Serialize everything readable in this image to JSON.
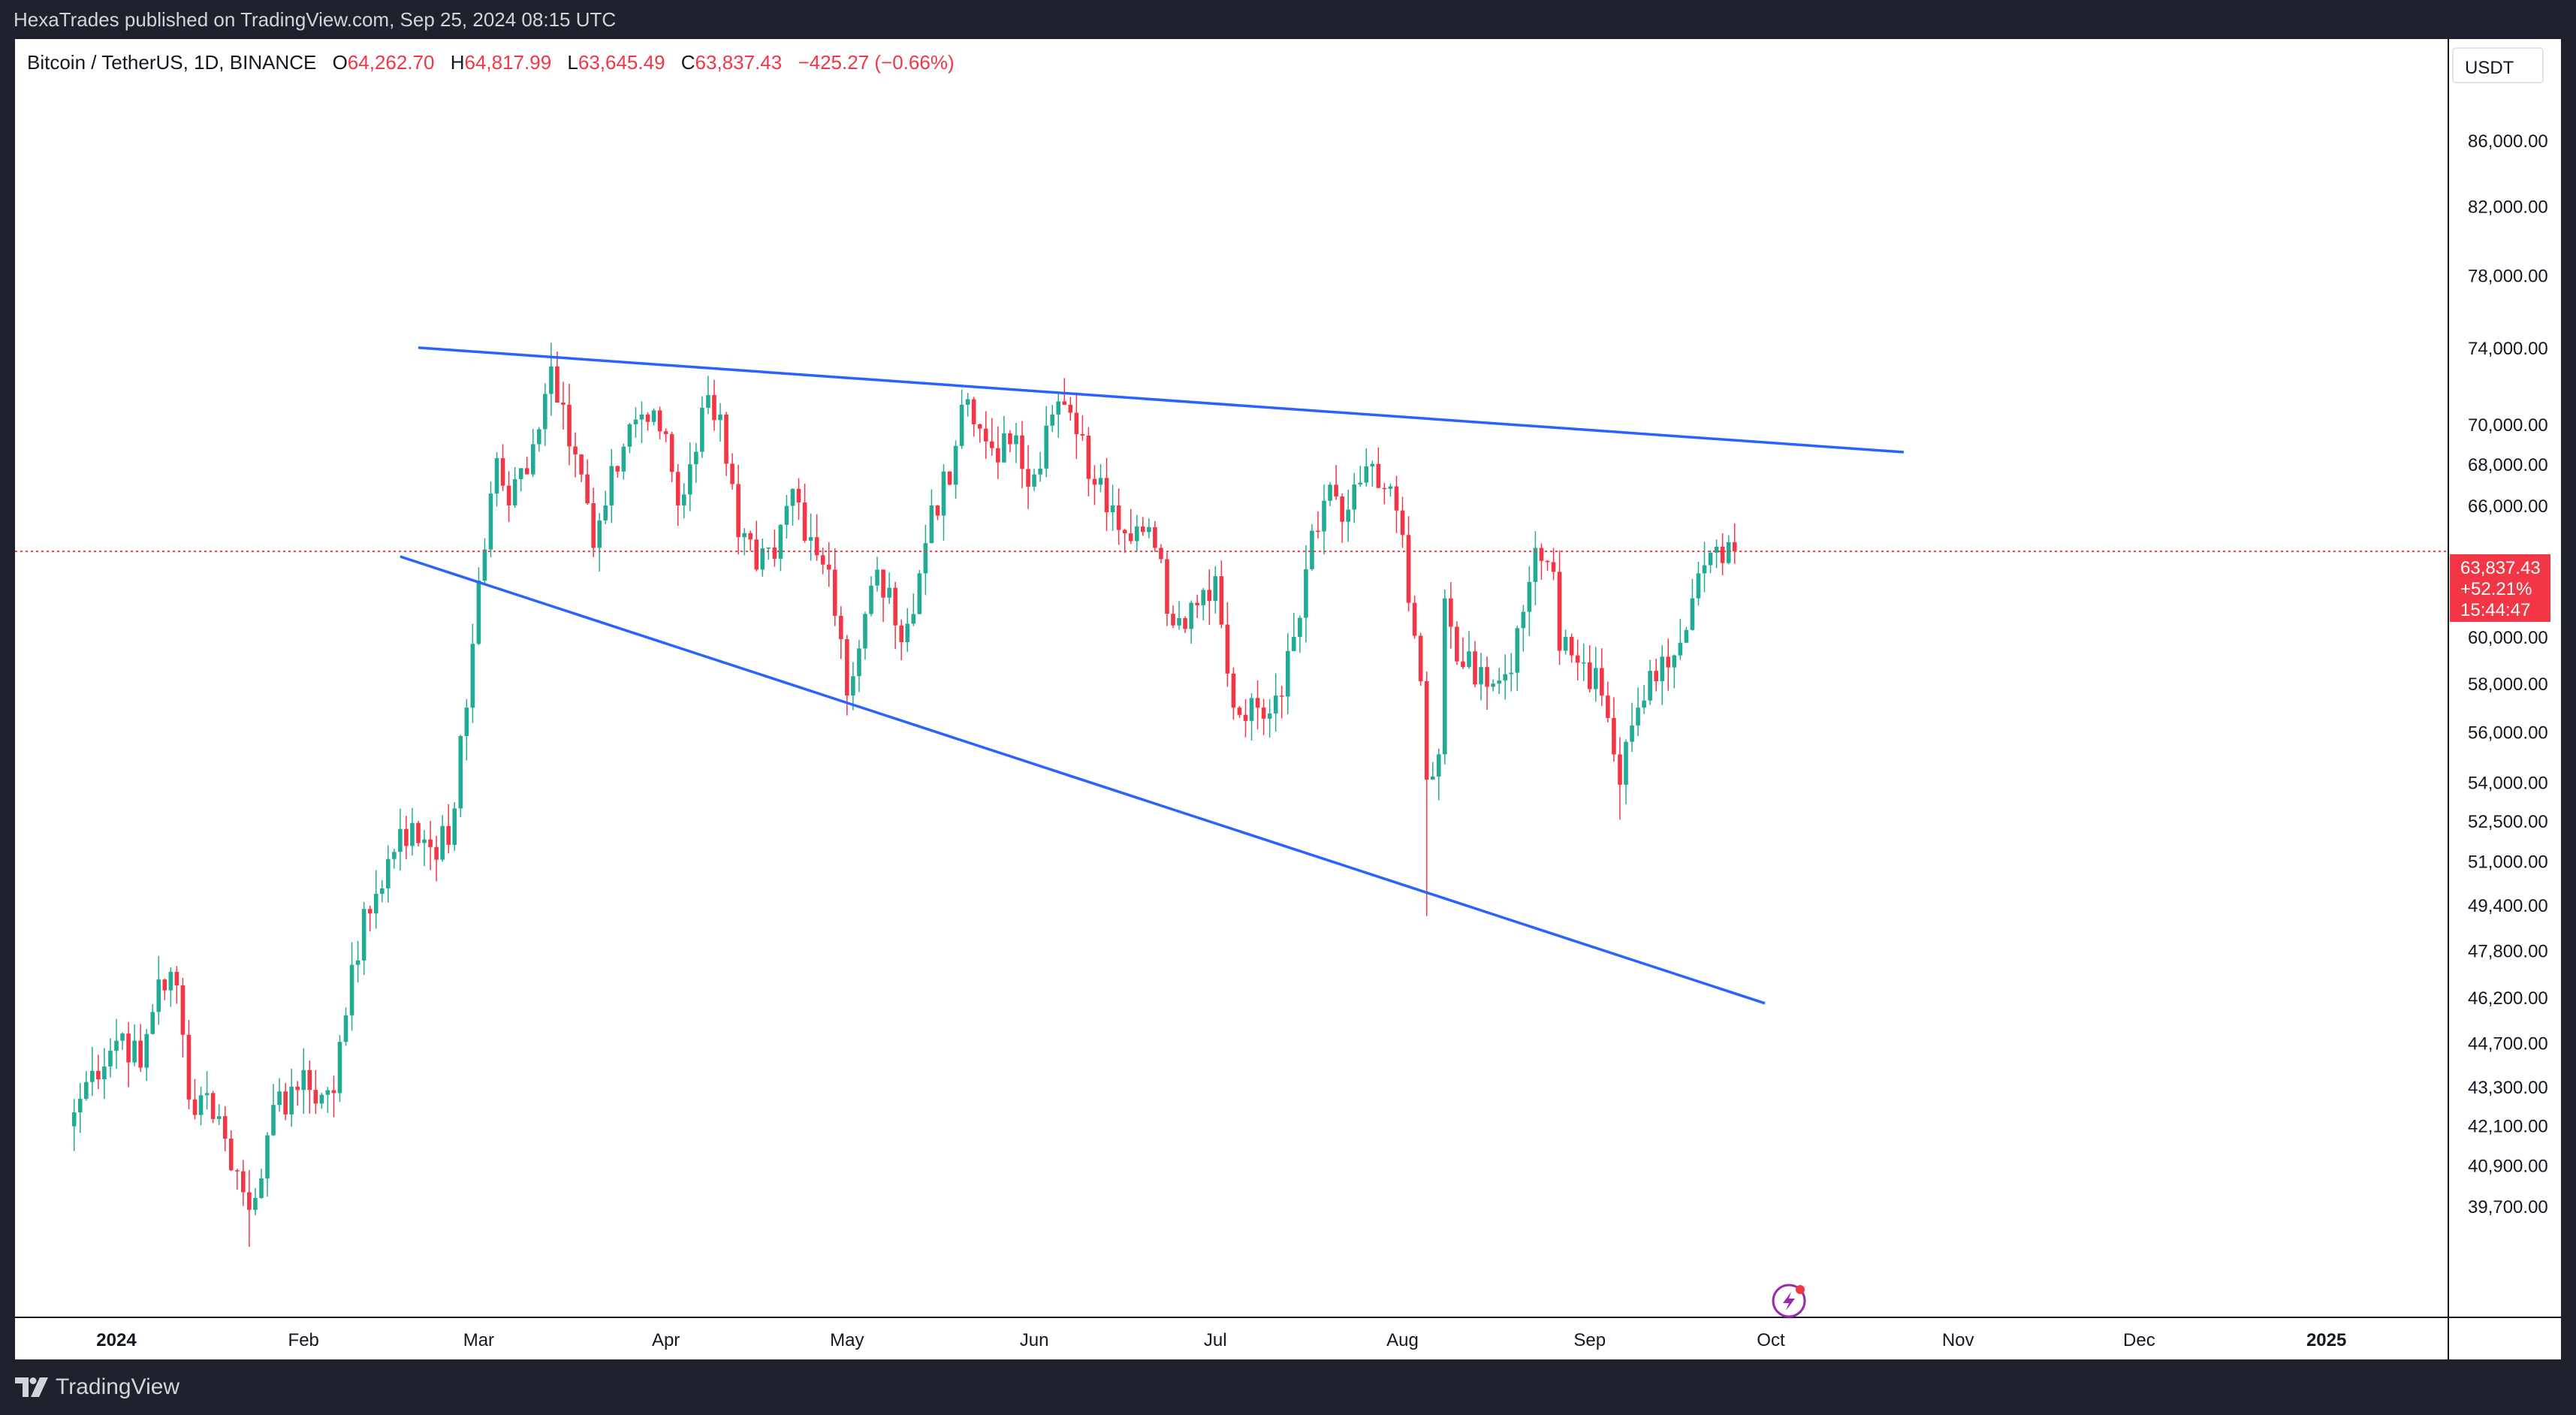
{
  "header": {
    "published": "HexaTrades published on TradingView.com, Sep 25, 2024 08:15 UTC"
  },
  "legend": {
    "symbol": "Bitcoin / TetherUS, 1D, BINANCE",
    "o_label": "O",
    "o_value": "64,262.70",
    "h_label": "H",
    "h_value": "64,817.99",
    "l_label": "L",
    "l_value": "63,645.49",
    "c_label": "C",
    "c_value": "63,837.43",
    "change": "−425.27 (−0.66%)"
  },
  "price_tag": {
    "price": "63,837.43",
    "pct": "+52.21%",
    "countdown": "15:44:47"
  },
  "currency": "USDT",
  "footer": {
    "brand": "TradingView"
  },
  "colors": {
    "up": "#26a69a",
    "down": "#ef5350",
    "up_candle": "#22ab94",
    "down_candle": "#f23645",
    "trendline": "#2962ff",
    "price_line": "#f23645",
    "text": "#131722",
    "price_tag_bg": "#f23645"
  },
  "chart_data": {
    "type": "candlestick",
    "symbol": "Bitcoin / TetherUS",
    "interval": "1D",
    "scale": "log",
    "y_ticks": [
      86000,
      82000,
      78000,
      74000,
      70000,
      68000,
      66000,
      60000,
      58000,
      56000,
      54000,
      52500,
      51000,
      49400,
      47800,
      46200,
      44700,
      43300,
      42100,
      40900,
      39700
    ],
    "y_tick_labels": [
      "86,000.00",
      "82,000.00",
      "78,000.00",
      "74,000.00",
      "70,000.00",
      "68,000.00",
      "66,000.00",
      "60,000.00",
      "58,000.00",
      "56,000.00",
      "54,000.00",
      "52,500.00",
      "51,000.00",
      "49,400.00",
      "47,800.00",
      "46,200.00",
      "44,700.00",
      "43,300.00",
      "42,100.00",
      "40,900.00",
      "39,700.00"
    ],
    "x_ticks": [
      {
        "date": "2024-01-01",
        "label": "2024"
      },
      {
        "date": "2024-02-01",
        "label": "Feb"
      },
      {
        "date": "2024-03-01",
        "label": "Mar"
      },
      {
        "date": "2024-04-01",
        "label": "Apr"
      },
      {
        "date": "2024-05-01",
        "label": "May"
      },
      {
        "date": "2024-06-01",
        "label": "Jun"
      },
      {
        "date": "2024-07-01",
        "label": "Jul"
      },
      {
        "date": "2024-08-01",
        "label": "Aug"
      },
      {
        "date": "2024-09-01",
        "label": "Sep"
      },
      {
        "date": "2024-10-01",
        "label": "Oct"
      },
      {
        "date": "2024-11-01",
        "label": "Nov"
      },
      {
        "date": "2024-12-01",
        "label": "Dec"
      },
      {
        "date": "2025-01-01",
        "label": "2025"
      }
    ],
    "anchors": [
      [
        "2023-12-25",
        42500
      ],
      [
        "2023-12-28",
        43800
      ],
      [
        "2024-01-02",
        45000
      ],
      [
        "2024-01-05",
        43900
      ],
      [
        "2024-01-08",
        46800
      ],
      [
        "2024-01-11",
        46600
      ],
      [
        "2024-01-13",
        42900
      ],
      [
        "2024-01-16",
        43100
      ],
      [
        "2024-01-19",
        41700
      ],
      [
        "2024-01-23",
        39600
      ],
      [
        "2024-01-26",
        41800
      ],
      [
        "2024-01-30",
        43300
      ],
      [
        "2024-02-02",
        43200
      ],
      [
        "2024-02-06",
        43100
      ],
      [
        "2024-02-09",
        47300
      ],
      [
        "2024-02-13",
        49800
      ],
      [
        "2024-02-17",
        52200
      ],
      [
        "2024-02-21",
        51800
      ],
      [
        "2024-02-25",
        51600
      ],
      [
        "2024-02-28",
        57000
      ],
      [
        "2024-03-01",
        62500
      ],
      [
        "2024-03-04",
        68300
      ],
      [
        "2024-03-06",
        66000
      ],
      [
        "2024-03-10",
        69000
      ],
      [
        "2024-03-13",
        73000
      ],
      [
        "2024-03-15",
        71000
      ],
      [
        "2024-03-18",
        67500
      ],
      [
        "2024-03-20",
        64000
      ],
      [
        "2024-03-22",
        66000
      ],
      [
        "2024-03-26",
        70000
      ],
      [
        "2024-03-28",
        70500
      ],
      [
        "2024-04-01",
        69500
      ],
      [
        "2024-04-03",
        66000
      ],
      [
        "2024-04-05",
        68000
      ],
      [
        "2024-04-08",
        71500
      ],
      [
        "2024-04-10",
        70500
      ],
      [
        "2024-04-13",
        64500
      ],
      [
        "2024-04-16",
        63000
      ],
      [
        "2024-04-19",
        63500
      ],
      [
        "2024-04-22",
        66800
      ],
      [
        "2024-04-25",
        64500
      ],
      [
        "2024-04-28",
        63000
      ],
      [
        "2024-04-30",
        59900
      ],
      [
        "2024-05-01",
        57500
      ],
      [
        "2024-05-03",
        59500
      ],
      [
        "2024-05-06",
        63000
      ],
      [
        "2024-05-09",
        60500
      ],
      [
        "2024-05-12",
        61000
      ],
      [
        "2024-05-15",
        66000
      ],
      [
        "2024-05-18",
        67000
      ],
      [
        "2024-05-20",
        71000
      ],
      [
        "2024-05-22",
        70000
      ],
      [
        "2024-05-25",
        68800
      ],
      [
        "2024-05-28",
        69000
      ],
      [
        "2024-06-01",
        67500
      ],
      [
        "2024-06-04",
        70500
      ],
      [
        "2024-06-06",
        71000
      ],
      [
        "2024-06-08",
        69500
      ],
      [
        "2024-06-11",
        67000
      ],
      [
        "2024-06-14",
        66000
      ],
      [
        "2024-06-18",
        65000
      ],
      [
        "2024-06-21",
        64000
      ],
      [
        "2024-06-24",
        60500
      ],
      [
        "2024-06-27",
        61500
      ],
      [
        "2024-07-01",
        62700
      ],
      [
        "2024-07-04",
        57000
      ],
      [
        "2024-07-05",
        56700
      ],
      [
        "2024-07-08",
        57000
      ],
      [
        "2024-07-11",
        57500
      ],
      [
        "2024-07-14",
        60000
      ],
      [
        "2024-07-17",
        64800
      ],
      [
        "2024-07-20",
        67000
      ],
      [
        "2024-07-23",
        65800
      ],
      [
        "2024-07-26",
        67900
      ],
      [
        "2024-07-29",
        66800
      ],
      [
        "2024-08-01",
        64600
      ],
      [
        "2024-08-02",
        61500
      ],
      [
        "2024-08-04",
        58100
      ],
      [
        "2024-08-05",
        54100
      ],
      [
        "2024-08-07",
        55100
      ],
      [
        "2024-08-08",
        61700
      ],
      [
        "2024-08-11",
        58700
      ],
      [
        "2024-08-14",
        58700
      ],
      [
        "2024-08-18",
        58400
      ],
      [
        "2024-08-21",
        61100
      ],
      [
        "2024-08-23",
        64000
      ],
      [
        "2024-08-26",
        62900
      ],
      [
        "2024-08-27",
        59400
      ],
      [
        "2024-08-31",
        58900
      ],
      [
        "2024-09-03",
        57500
      ],
      [
        "2024-09-06",
        53900
      ],
      [
        "2024-09-09",
        57000
      ],
      [
        "2024-09-12",
        58100
      ],
      [
        "2024-09-15",
        59200
      ],
      [
        "2024-09-17",
        60300
      ],
      [
        "2024-09-18",
        61700
      ],
      [
        "2024-09-20",
        63200
      ],
      [
        "2024-09-23",
        63300
      ],
      [
        "2024-09-24",
        64262.7
      ],
      [
        "2024-09-25",
        63837.43
      ]
    ],
    "current_price": 63837.43,
    "trendlines": [
      {
        "from": {
          "date": "2024-02-20",
          "price": 74000
        },
        "to": {
          "date": "2024-10-23",
          "price": 68600
        }
      },
      {
        "from": {
          "date": "2024-02-17",
          "price": 63600
        },
        "to": {
          "date": "2024-09-30",
          "price": 46000
        }
      }
    ]
  }
}
